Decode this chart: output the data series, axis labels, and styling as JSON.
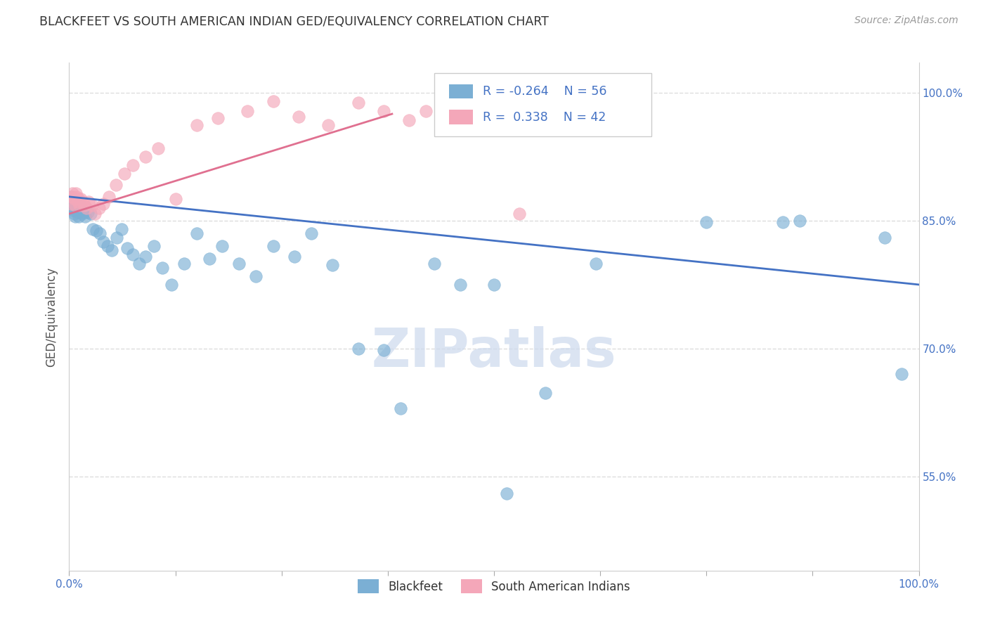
{
  "title": "BLACKFEET VS SOUTH AMERICAN INDIAN GED/EQUIVALENCY CORRELATION CHART",
  "source": "Source: ZipAtlas.com",
  "ylabel": "GED/Equivalency",
  "xlim": [
    0.0,
    1.0
  ],
  "ylim": [
    0.44,
    1.035
  ],
  "yticks": [
    0.55,
    0.7,
    0.85,
    1.0
  ],
  "ytick_labels": [
    "55.0%",
    "70.0%",
    "85.0%",
    "100.0%"
  ],
  "xticks": [
    0.0,
    0.125,
    0.25,
    0.375,
    0.5,
    0.625,
    0.75,
    0.875,
    1.0
  ],
  "xtick_labels": [
    "0.0%",
    "",
    "",
    "",
    "",
    "",
    "",
    "",
    "100.0%"
  ],
  "blue_color": "#7bafd4",
  "pink_color": "#f4a7b9",
  "blue_line_color": "#4472c4",
  "pink_line_color": "#e07090",
  "grid_color": "#dddddd",
  "watermark": "ZIPatlas",
  "blue_line_x0": 0.0,
  "blue_line_y0": 0.878,
  "blue_line_x1": 1.0,
  "blue_line_y1": 0.775,
  "pink_line_x0": 0.0,
  "pink_line_y0": 0.858,
  "pink_line_x1": 0.38,
  "pink_line_y1": 0.975,
  "blackfeet_x": [
    0.002,
    0.003,
    0.004,
    0.005,
    0.006,
    0.007,
    0.008,
    0.009,
    0.01,
    0.011,
    0.012,
    0.013,
    0.015,
    0.017,
    0.019,
    0.022,
    0.025,
    0.028,
    0.032,
    0.036,
    0.04,
    0.045,
    0.05,
    0.056,
    0.062,
    0.068,
    0.075,
    0.082,
    0.09,
    0.1,
    0.11,
    0.12,
    0.135,
    0.15,
    0.165,
    0.18,
    0.2,
    0.22,
    0.24,
    0.265,
    0.285,
    0.31,
    0.34,
    0.37,
    0.39,
    0.43,
    0.46,
    0.5,
    0.515,
    0.56,
    0.62,
    0.75,
    0.84,
    0.86,
    0.96,
    0.98
  ],
  "blackfeet_y": [
    0.878,
    0.865,
    0.87,
    0.862,
    0.858,
    0.855,
    0.868,
    0.872,
    0.86,
    0.855,
    0.87,
    0.862,
    0.858,
    0.86,
    0.855,
    0.86,
    0.858,
    0.84,
    0.838,
    0.835,
    0.825,
    0.82,
    0.815,
    0.83,
    0.84,
    0.818,
    0.81,
    0.8,
    0.808,
    0.82,
    0.795,
    0.775,
    0.8,
    0.835,
    0.805,
    0.82,
    0.8,
    0.785,
    0.82,
    0.808,
    0.835,
    0.798,
    0.7,
    0.698,
    0.63,
    0.8,
    0.775,
    0.775,
    0.53,
    0.648,
    0.8,
    0.848,
    0.848,
    0.85,
    0.83,
    0.67
  ],
  "south_american_x": [
    0.002,
    0.003,
    0.004,
    0.005,
    0.006,
    0.007,
    0.008,
    0.009,
    0.01,
    0.011,
    0.012,
    0.014,
    0.016,
    0.018,
    0.02,
    0.023,
    0.027,
    0.03,
    0.035,
    0.04,
    0.047,
    0.055,
    0.065,
    0.075,
    0.09,
    0.105,
    0.125,
    0.15,
    0.175,
    0.21,
    0.24,
    0.27,
    0.305,
    0.34,
    0.37,
    0.4,
    0.42,
    0.44,
    0.46,
    0.48,
    0.5,
    0.53
  ],
  "south_american_y": [
    0.87,
    0.878,
    0.882,
    0.878,
    0.875,
    0.868,
    0.882,
    0.878,
    0.872,
    0.875,
    0.868,
    0.875,
    0.872,
    0.868,
    0.865,
    0.872,
    0.868,
    0.858,
    0.865,
    0.87,
    0.878,
    0.892,
    0.905,
    0.915,
    0.925,
    0.935,
    0.875,
    0.962,
    0.97,
    0.978,
    0.99,
    0.972,
    0.962,
    0.988,
    0.978,
    0.968,
    0.978,
    0.968,
    0.988,
    0.978,
    0.962,
    0.858
  ]
}
